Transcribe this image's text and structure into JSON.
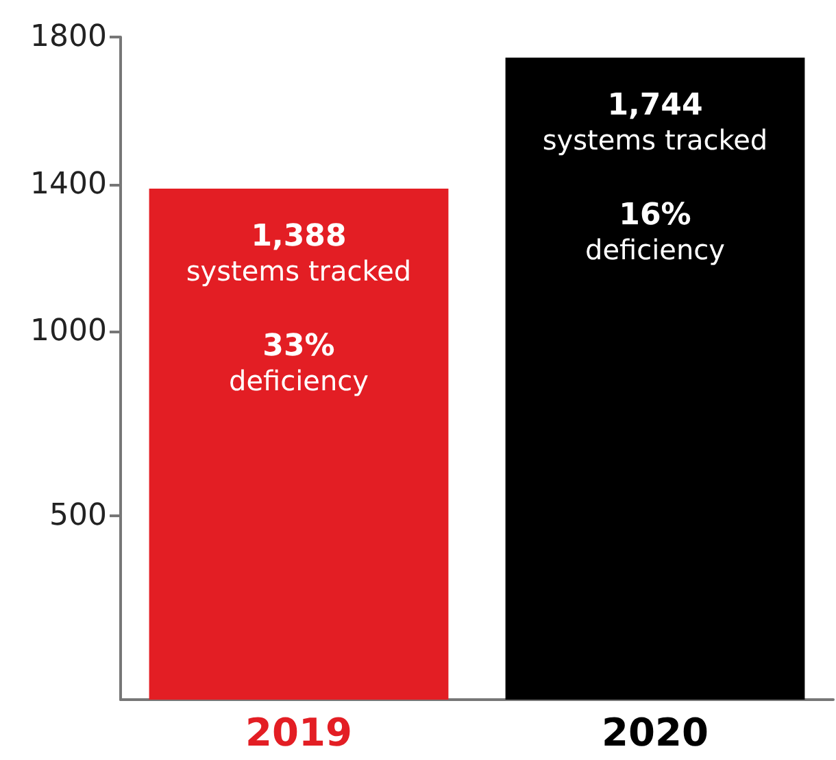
{
  "chart_data": {
    "type": "bar",
    "categories": [
      "2019",
      "2020"
    ],
    "values": [
      1388,
      1744
    ],
    "colors": [
      "#e31e24",
      "#000000"
    ],
    "value_labels": [
      "1,388",
      "1,744"
    ],
    "ylim": [
      0,
      1800
    ],
    "yticks": [
      500,
      1000,
      1400,
      1800
    ],
    "grid": false,
    "annotations": [
      "systems tracked",
      "33%",
      "deficiency",
      "systems tracked",
      "16%",
      "deficiency"
    ]
  }
}
